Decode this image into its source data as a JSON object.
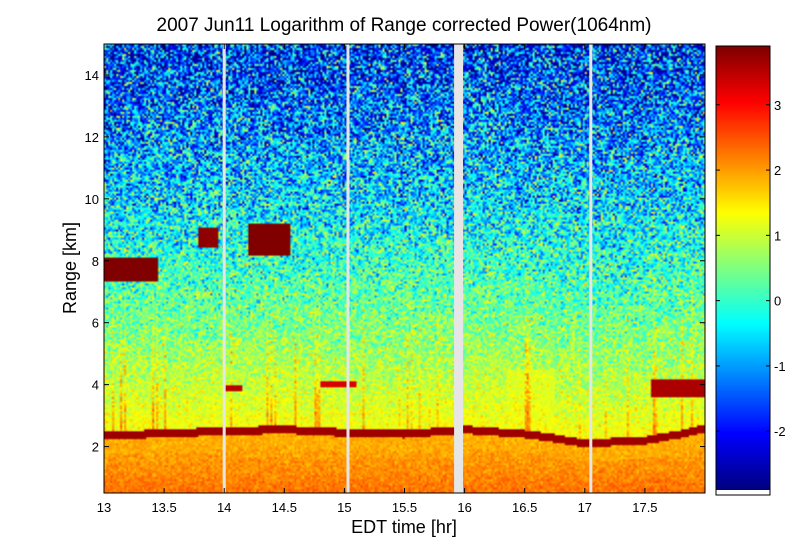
{
  "figure": {
    "title": "2007 Jun11  Logarithm of Range corrected Power(1064nm)"
  },
  "chart_data": {
    "type": "heatmap",
    "title": "2007 Jun11  Logarithm of Range corrected Power(1064nm)",
    "xlabel": "EDT time [hr]",
    "ylabel": "Range [km]",
    "xlim": [
      13.0,
      18.0
    ],
    "ylim": [
      0.5,
      15.0
    ],
    "x_ticks": [
      13,
      13.5,
      14,
      14.5,
      15,
      15.5,
      16,
      16.5,
      17,
      17.5
    ],
    "x_tick_labels": [
      "13",
      "13.5",
      "14",
      "14.5",
      "15",
      "15.5",
      "16",
      "16.5",
      "17",
      "17.5"
    ],
    "y_ticks": [
      2,
      4,
      6,
      8,
      10,
      12,
      14
    ],
    "y_tick_labels": [
      "2",
      "4",
      "6",
      "8",
      "10",
      "12",
      "14"
    ],
    "colorbar": {
      "colormap": "jet",
      "clim": [
        -2.9,
        3.9
      ],
      "ticks": [
        -2,
        -1,
        0,
        1,
        2,
        3
      ],
      "tick_labels": [
        "-2",
        "-1",
        "0",
        "1",
        "2",
        "3"
      ]
    },
    "data_gaps_hr": [
      14.0,
      15.03,
      15.95,
      17.05
    ],
    "features": {
      "boundary_layer_top_km": [
        [
          13.0,
          2.35
        ],
        [
          14.0,
          2.5
        ],
        [
          14.5,
          2.55
        ],
        [
          15.0,
          2.45
        ],
        [
          15.5,
          2.4
        ],
        [
          16.0,
          2.55
        ],
        [
          16.5,
          2.4
        ],
        [
          16.7,
          2.3
        ],
        [
          17.0,
          2.1
        ],
        [
          17.5,
          2.2
        ],
        [
          17.8,
          2.4
        ],
        [
          18.0,
          2.6
        ]
      ],
      "cloud_layers": [
        {
          "x_start": 13.0,
          "x_end": 13.45,
          "y_bottom": 7.3,
          "y_top": 8.1,
          "value": 3.9
        },
        {
          "x_start": 13.78,
          "x_end": 13.95,
          "y_bottom": 8.4,
          "y_top": 9.1,
          "value": 3.8
        },
        {
          "x_start": 14.2,
          "x_end": 14.55,
          "y_bottom": 8.2,
          "y_top": 9.2,
          "value": 3.9
        },
        {
          "x_start": 14.0,
          "x_end": 14.15,
          "y_bottom": 3.8,
          "y_top": 4.0,
          "value": 3.5
        },
        {
          "x_start": 14.8,
          "x_end": 15.1,
          "y_bottom": 3.9,
          "y_top": 4.1,
          "value": 3.3
        },
        {
          "x_start": 17.55,
          "x_end": 18.0,
          "y_bottom": 3.6,
          "y_top": 4.2,
          "value": 3.6
        }
      ]
    }
  }
}
